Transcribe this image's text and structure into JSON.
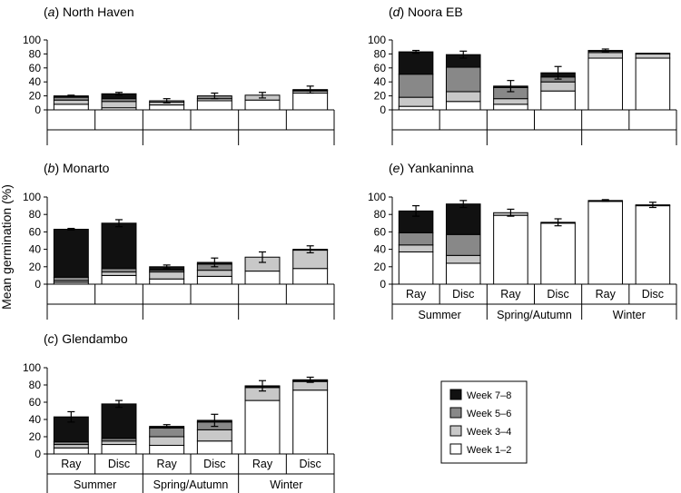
{
  "ylabel": "Mean germination (%)",
  "legend": {
    "placement": "bottom-right",
    "items": [
      {
        "label": "Week 7–8",
        "color": "#111111"
      },
      {
        "label": "Week 5–6",
        "color": "#888888"
      },
      {
        "label": "Week 3–4",
        "color": "#c8c8c8"
      },
      {
        "label": "Week 1–2",
        "color": "#ffffff"
      }
    ]
  },
  "chart_data": [
    {
      "type": "bar",
      "letter": "a",
      "name": "North Haven",
      "ylim": [
        0,
        100
      ],
      "yticks": [
        0,
        20,
        40,
        60,
        80,
        100
      ],
      "categories": [
        "",
        "",
        "",
        "",
        "",
        ""
      ],
      "groups": [
        "",
        "",
        ""
      ],
      "series": [
        {
          "name": "Week 1–2",
          "values": [
            8,
            3,
            7,
            13,
            14,
            24
          ]
        },
        {
          "name": "Week 3–4",
          "values": [
            6,
            9,
            4,
            3,
            7,
            3
          ]
        },
        {
          "name": "Week 5–6",
          "values": [
            4,
            4,
            2,
            4,
            0,
            1
          ]
        },
        {
          "name": "Week 7–8",
          "values": [
            2,
            7,
            0,
            0,
            0,
            1
          ]
        }
      ],
      "errors": [
        1,
        2,
        3,
        4,
        4,
        5
      ]
    },
    {
      "type": "bar",
      "letter": "b",
      "name": "Monarto",
      "ylim": [
        0,
        100
      ],
      "yticks": [
        0,
        20,
        40,
        60,
        80,
        100
      ],
      "categories": [
        "",
        "",
        "",
        "",
        "",
        ""
      ],
      "groups": [
        "",
        "",
        ""
      ],
      "series": [
        {
          "name": "Week 1–2",
          "values": [
            2,
            10,
            6,
            9,
            15,
            18
          ]
        },
        {
          "name": "Week 3–4",
          "values": [
            2,
            4,
            8,
            7,
            16,
            21
          ]
        },
        {
          "name": "Week 5–6",
          "values": [
            4,
            4,
            2,
            7,
            0,
            0
          ]
        },
        {
          "name": "Week 7–8",
          "values": [
            55,
            52,
            4,
            2,
            0,
            1
          ]
        }
      ],
      "errors": [
        1,
        4,
        2,
        5,
        6,
        4
      ]
    },
    {
      "type": "bar",
      "letter": "c",
      "name": "Glendambo",
      "ylim": [
        0,
        100
      ],
      "yticks": [
        0,
        20,
        40,
        60,
        80,
        100
      ],
      "categories": [
        "Ray",
        "Disc",
        "Ray",
        "Disc",
        "Ray",
        "Disc"
      ],
      "groups": [
        "Summer",
        "Spring/Autumn",
        "Winter"
      ],
      "series": [
        {
          "name": "Week 1–2",
          "values": [
            7,
            11,
            10,
            15,
            62,
            74
          ]
        },
        {
          "name": "Week 3–4",
          "values": [
            4,
            4,
            10,
            13,
            15,
            10
          ]
        },
        {
          "name": "Week 5–6",
          "values": [
            3,
            3,
            10,
            9,
            1,
            1
          ]
        },
        {
          "name": "Week 7–8",
          "values": [
            29,
            40,
            2,
            2,
            1,
            1
          ]
        }
      ],
      "errors": [
        6,
        4,
        2,
        7,
        6,
        3
      ]
    },
    {
      "type": "bar",
      "letter": "d",
      "name": "Noora EB",
      "ylim": [
        0,
        100
      ],
      "yticks": [
        0,
        20,
        40,
        60,
        80,
        100
      ],
      "categories": [
        "",
        "",
        "",
        "",
        "",
        ""
      ],
      "groups": [
        "",
        "",
        ""
      ],
      "series": [
        {
          "name": "Week 1–2",
          "values": [
            5,
            12,
            8,
            27,
            74,
            74
          ]
        },
        {
          "name": "Week 3–4",
          "values": [
            13,
            14,
            8,
            13,
            8,
            6
          ]
        },
        {
          "name": "Week 5–6",
          "values": [
            33,
            35,
            16,
            7,
            2,
            0
          ]
        },
        {
          "name": "Week 7–8",
          "values": [
            32,
            18,
            2,
            6,
            1,
            1
          ]
        }
      ],
      "errors": [
        2,
        5,
        8,
        9,
        2,
        0
      ]
    },
    {
      "type": "bar",
      "letter": "e",
      "name": "Yankaninna",
      "ylim": [
        0,
        100
      ],
      "yticks": [
        0,
        20,
        40,
        60,
        80,
        100
      ],
      "categories": [
        "Ray",
        "Disc",
        "Ray",
        "Disc",
        "Ray",
        "Disc"
      ],
      "groups": [
        "Summer",
        "Spring/Autumn",
        "Winter"
      ],
      "series": [
        {
          "name": "Week 1–2",
          "values": [
            37,
            24,
            79,
            70,
            95,
            90
          ]
        },
        {
          "name": "Week 3–4",
          "values": [
            8,
            9,
            3,
            1,
            1,
            1
          ]
        },
        {
          "name": "Week 5–6",
          "values": [
            14,
            24,
            0,
            0,
            0,
            0
          ]
        },
        {
          "name": "Week 7–8",
          "values": [
            25,
            35,
            0,
            0,
            0,
            0
          ]
        }
      ],
      "errors": [
        6,
        4,
        4,
        4,
        1,
        3
      ]
    }
  ]
}
